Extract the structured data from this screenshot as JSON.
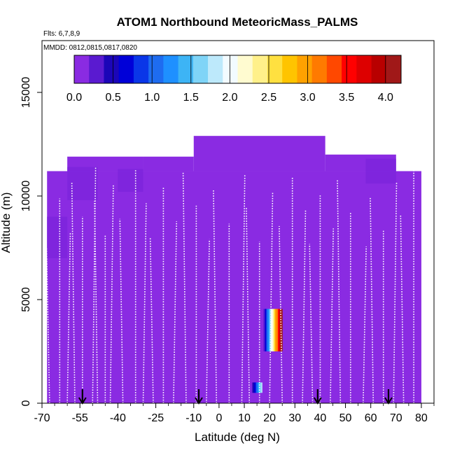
{
  "chart_data": {
    "type": "heatmap",
    "title": "ATOM1 Northbound MeteoricMass_PALMS",
    "flights_label": "Flts: 6,7,8,9",
    "dates_label": "MMDD: 0812,0815,0817,0820",
    "xlabel": "Latitude (deg N)",
    "ylabel": "Altitude (m)",
    "xlim": [
      -70,
      85
    ],
    "ylim": [
      0,
      17500
    ],
    "x_ticks": [
      -70,
      -55,
      -40,
      -25,
      -10,
      0,
      10,
      20,
      30,
      40,
      50,
      60,
      70,
      80
    ],
    "x_tick_labels": [
      "-70",
      "-55",
      "-40",
      "-25",
      "-10",
      "0",
      "10",
      "20",
      "30",
      "40",
      "50",
      "60",
      "70",
      "80"
    ],
    "y_ticks": [
      0,
      5000,
      10000,
      15000
    ],
    "y_tick_labels": [
      "0",
      "5000",
      "10000",
      "15000"
    ],
    "colorbar": {
      "range": [
        0,
        4.2
      ],
      "ticks": [
        0.0,
        0.5,
        1.0,
        1.5,
        2.0,
        2.5,
        3.0,
        3.5,
        4.0
      ],
      "tick_labels": [
        "0.0",
        "0.5",
        "1.0",
        "1.5",
        "2.0",
        "2.5",
        "3.0",
        "3.5",
        "4.0"
      ],
      "colors": [
        "#8a2be2",
        "#5a1ad0",
        "#1b06b8",
        "#0000d8",
        "#0a36e8",
        "#1e6cf0",
        "#1e90ff",
        "#3db4f5",
        "#7fd4f7",
        "#bde9fb",
        "#f2fbff",
        "#fffbd0",
        "#fff08a",
        "#ffe040",
        "#ffc400",
        "#ffa100",
        "#ff7a00",
        "#ff4800",
        "#ff0000",
        "#dd0000",
        "#b80000",
        "#a01818"
      ]
    },
    "background_value": 0.1,
    "regions": [
      {
        "lat": [
          -68,
          80
        ],
        "alt": [
          0,
          11200
        ],
        "value": 0.1
      },
      {
        "lat": [
          -60,
          -30
        ],
        "alt": [
          11200,
          11900
        ],
        "value": 0.1
      },
      {
        "lat": [
          -30,
          -10
        ],
        "alt": [
          11200,
          11900
        ],
        "value": 0.1
      },
      {
        "lat": [
          -10,
          42
        ],
        "alt": [
          11200,
          12900
        ],
        "value": 0.1
      },
      {
        "lat": [
          42,
          70
        ],
        "alt": [
          11200,
          12000
        ],
        "value": 0.1
      }
    ],
    "highlights": [
      {
        "lat": [
          17,
          25
        ],
        "alt": [
          2500,
          4550
        ],
        "value_range": [
          0.0,
          4.2
        ]
      },
      {
        "lat": [
          13,
          17
        ],
        "alt": [
          500,
          1000
        ],
        "value_range": [
          0.3,
          1.8
        ]
      }
    ],
    "flight_profiles_lat": [
      -67,
      -63,
      -60,
      -57,
      -54,
      -50,
      -48,
      -45,
      -43,
      -38,
      -33,
      -30,
      -26,
      -22,
      -18,
      -13,
      -9,
      -5,
      -1,
      4,
      9,
      12,
      16,
      20,
      25,
      29,
      33,
      37,
      40,
      44,
      48,
      52,
      57,
      61,
      65,
      69,
      73,
      77
    ],
    "arrows_lat": [
      -54,
      -8,
      39,
      67
    ]
  }
}
